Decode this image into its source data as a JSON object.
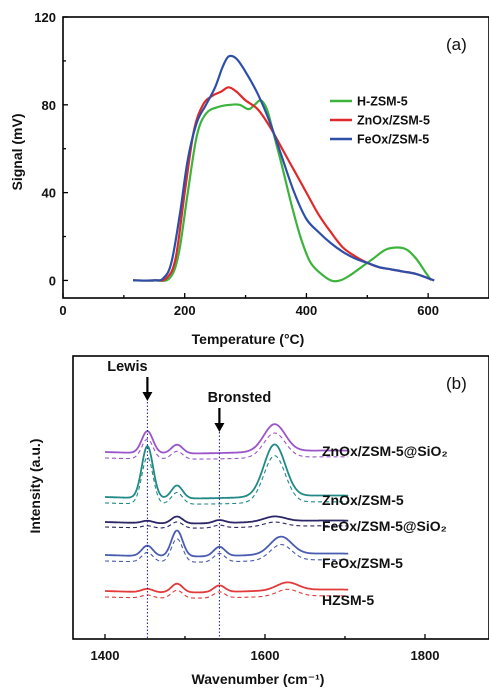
{
  "chart_data": [
    {
      "type": "line",
      "panel_label": "(a)",
      "xlabel": "Temperature (°C)",
      "ylabel": "Signal (mV)",
      "xlim": [
        0,
        700
      ],
      "ylim": [
        -8,
        120
      ],
      "xticks": [
        0,
        200,
        400,
        600
      ],
      "yticks": [
        0,
        40,
        80,
        120
      ],
      "legend_position": "right",
      "series": [
        {
          "name": "H-ZSM-5",
          "color": "#3cb43c",
          "points": [
            [
              115,
              0
            ],
            [
              150,
              0
            ],
            [
              175,
              1
            ],
            [
              190,
              12
            ],
            [
              205,
              40
            ],
            [
              220,
              66
            ],
            [
              235,
              76
            ],
            [
              255,
              79
            ],
            [
              275,
              80
            ],
            [
              290,
              80
            ],
            [
              305,
              78
            ],
            [
              315,
              80
            ],
            [
              325,
              82
            ],
            [
              335,
              78
            ],
            [
              345,
              68
            ],
            [
              360,
              52
            ],
            [
              375,
              35
            ],
            [
              390,
              20
            ],
            [
              405,
              9
            ],
            [
              420,
              4
            ],
            [
              440,
              0
            ],
            [
              455,
              0
            ],
            [
              470,
              2
            ],
            [
              490,
              6
            ],
            [
              510,
              10
            ],
            [
              530,
              14
            ],
            [
              550,
              15
            ],
            [
              565,
              14
            ],
            [
              580,
              10
            ],
            [
              595,
              4
            ],
            [
              605,
              0
            ]
          ]
        },
        {
          "name": "ZnOx/ZSM-5",
          "color": "#e02a2a",
          "points": [
            [
              115,
              0
            ],
            [
              150,
              0
            ],
            [
              170,
              1
            ],
            [
              185,
              10
            ],
            [
              200,
              40
            ],
            [
              215,
              68
            ],
            [
              230,
              80
            ],
            [
              245,
              84
            ],
            [
              260,
              86
            ],
            [
              272,
              88
            ],
            [
              285,
              86
            ],
            [
              300,
              82
            ],
            [
              320,
              78
            ],
            [
              340,
              70
            ],
            [
              360,
              60
            ],
            [
              380,
              50
            ],
            [
              400,
              40
            ],
            [
              420,
              30
            ],
            [
              440,
              22
            ],
            [
              460,
              15
            ],
            [
              480,
              11
            ],
            [
              500,
              8
            ],
            [
              520,
              6
            ],
            [
              540,
              5
            ],
            [
              560,
              4
            ],
            [
              580,
              3
            ],
            [
              600,
              1
            ],
            [
              610,
              0
            ]
          ]
        },
        {
          "name": "FeOx/ZSM-5",
          "color": "#2e4fa8",
          "points": [
            [
              115,
              0
            ],
            [
              150,
              0
            ],
            [
              165,
              1
            ],
            [
              178,
              8
            ],
            [
              192,
              30
            ],
            [
              205,
              55
            ],
            [
              220,
              72
            ],
            [
              235,
              80
            ],
            [
              250,
              88
            ],
            [
              262,
              97
            ],
            [
              272,
              102
            ],
            [
              285,
              101
            ],
            [
              300,
              95
            ],
            [
              320,
              85
            ],
            [
              340,
              72
            ],
            [
              360,
              56
            ],
            [
              380,
              40
            ],
            [
              400,
              28
            ],
            [
              420,
              22
            ],
            [
              440,
              17
            ],
            [
              460,
              13
            ],
            [
              480,
              10
            ],
            [
              500,
              8
            ],
            [
              520,
              6
            ],
            [
              540,
              5
            ],
            [
              560,
              4
            ],
            [
              580,
              3
            ],
            [
              600,
              1
            ],
            [
              610,
              0
            ]
          ]
        }
      ]
    },
    {
      "type": "line",
      "panel_label": "(b)",
      "xlabel": "Wavenumber (cm⁻¹)",
      "ylabel": "Intensity (a.u.)",
      "xlim": [
        1360,
        1880
      ],
      "xticks": [
        1400,
        1600,
        1800
      ],
      "annotations": [
        {
          "text": "Lewis",
          "x": 1453
        },
        {
          "text": "Bronsted",
          "x": 1543
        }
      ],
      "series": [
        {
          "name": "ZnOx/ZSM-5@SiO₂",
          "color": "#9b55c9",
          "peaks": [
            [
              1453,
              0.5
            ],
            [
              1490,
              0.2
            ],
            [
              1612,
              0.62
            ]
          ]
        },
        {
          "name": "ZnOx/ZSM-5",
          "color": "#218a86",
          "peaks": [
            [
              1453,
              1.0
            ],
            [
              1490,
              0.25
            ],
            [
              1612,
              1.0
            ]
          ]
        },
        {
          "name": "FeOx/ZSM-5@SiO₂",
          "color": "#2b2766",
          "peaks": [
            [
              1453,
              0.12
            ],
            [
              1490,
              0.35
            ],
            [
              1543,
              0.15
            ],
            [
              1612,
              0.25
            ]
          ]
        },
        {
          "name": "FeOx/ZSM-5",
          "color": "#4a5cb0",
          "peaks": [
            [
              1453,
              0.25
            ],
            [
              1490,
              0.62
            ],
            [
              1543,
              0.22
            ],
            [
              1620,
              0.42
            ]
          ]
        },
        {
          "name": "HZSM-5",
          "color": "#e23b3b",
          "peaks": [
            [
              1453,
              0.15
            ],
            [
              1490,
              0.4
            ],
            [
              1543,
              0.3
            ],
            [
              1628,
              0.35
            ]
          ]
        }
      ]
    }
  ]
}
